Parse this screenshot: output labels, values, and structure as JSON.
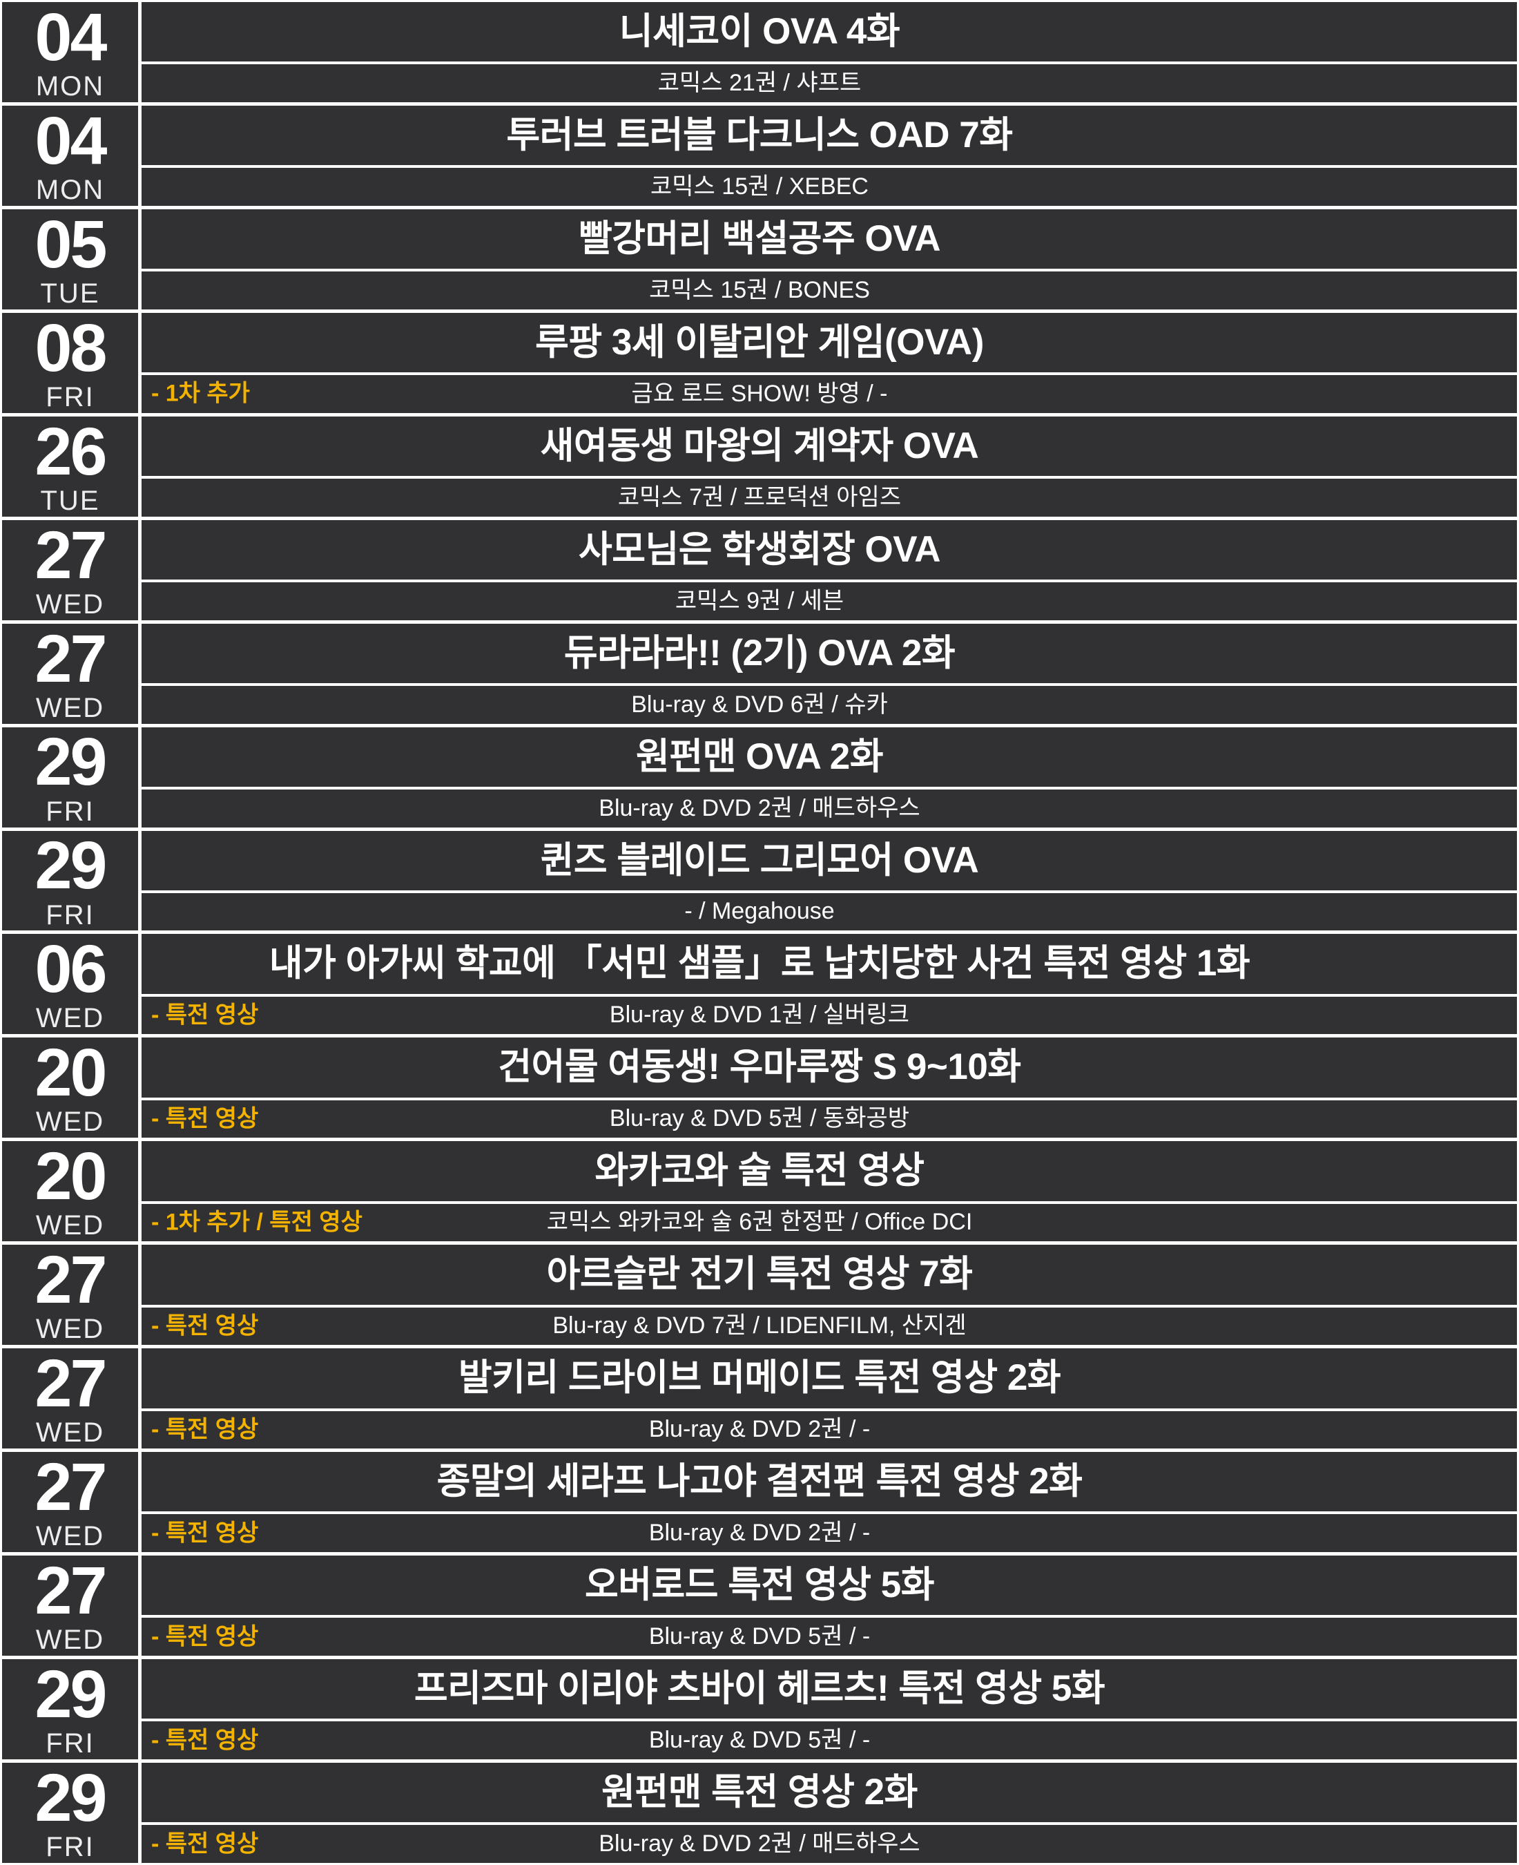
{
  "style": {
    "background_color": "#313133",
    "line_color": "#ffffff",
    "text_color": "#ffffff",
    "accent_color": "#f3b300"
  },
  "chart_data": {
    "type": "table",
    "title": "",
    "columns": [
      "date",
      "day",
      "title",
      "note",
      "subtitle"
    ],
    "rows": [
      {
        "date": "04",
        "day": "MON",
        "title": "니세코이 OVA 4화",
        "note": "",
        "subtitle": "코믹스 21권 / 샤프트"
      },
      {
        "date": "04",
        "day": "MON",
        "title": "투러브 트러블 다크니스 OAD 7화",
        "note": "",
        "subtitle": "코믹스 15권 / XEBEC"
      },
      {
        "date": "05",
        "day": "TUE",
        "title": "빨강머리 백설공주 OVA",
        "note": "",
        "subtitle": "코믹스 15권 / BONES"
      },
      {
        "date": "08",
        "day": "FRI",
        "title": "루팡 3세 이탈리안 게임(OVA)",
        "note": "- 1차 추가",
        "subtitle": "금요 로드 SHOW! 방영 / -"
      },
      {
        "date": "26",
        "day": "TUE",
        "title": "새여동생 마왕의 계약자 OVA",
        "note": "",
        "subtitle": "코믹스 7권 / 프로덕션 아임즈"
      },
      {
        "date": "27",
        "day": "WED",
        "title": "사모님은 학생회장 OVA",
        "note": "",
        "subtitle": "코믹스 9권 / 세븐"
      },
      {
        "date": "27",
        "day": "WED",
        "title": "듀라라라!! (2기) OVA 2화",
        "note": "",
        "subtitle": "Blu-ray & DVD 6권 / 슈카"
      },
      {
        "date": "29",
        "day": "FRI",
        "title": "원펀맨 OVA 2화",
        "note": "",
        "subtitle": "Blu-ray & DVD 2권 / 매드하우스"
      },
      {
        "date": "29",
        "day": "FRI",
        "title": "퀸즈 블레이드 그리모어 OVA",
        "note": "",
        "subtitle": "- / Megahouse"
      },
      {
        "date": "06",
        "day": "WED",
        "title": "내가 아가씨 학교에 「서민 샘플」로 납치당한 사건 특전 영상 1화",
        "note": "- 특전 영상",
        "subtitle": "Blu-ray & DVD 1권 / 실버링크"
      },
      {
        "date": "20",
        "day": "WED",
        "title": "건어물 여동생! 우마루짱 S 9~10화",
        "note": "- 특전 영상",
        "subtitle": "Blu-ray & DVD 5권 / 동화공방"
      },
      {
        "date": "20",
        "day": "WED",
        "title": "와카코와 술 특전 영상",
        "note": "- 1차 추가 / 특전 영상",
        "subtitle": "코믹스 와카코와 술 6권 한정판 / Office DCI"
      },
      {
        "date": "27",
        "day": "WED",
        "title": "아르슬란 전기 특전 영상 7화",
        "note": "- 특전 영상",
        "subtitle": "Blu-ray & DVD 7권 / LIDENFILM, 산지겐"
      },
      {
        "date": "27",
        "day": "WED",
        "title": "발키리 드라이브 머메이드 특전 영상 2화",
        "note": "- 특전 영상",
        "subtitle": "Blu-ray & DVD 2권 / -"
      },
      {
        "date": "27",
        "day": "WED",
        "title": "종말의 세라프 나고야 결전편 특전 영상 2화",
        "note": "- 특전 영상",
        "subtitle": "Blu-ray & DVD 2권 / -"
      },
      {
        "date": "27",
        "day": "WED",
        "title": "오버로드 특전 영상 5화",
        "note": "- 특전 영상",
        "subtitle": "Blu-ray & DVD 5권 / -"
      },
      {
        "date": "29",
        "day": "FRI",
        "title": "프리즈마 이리야 츠바이 헤르츠! 특전 영상 5화",
        "note": "- 특전 영상",
        "subtitle": "Blu-ray & DVD 5권 / -"
      },
      {
        "date": "29",
        "day": "FRI",
        "title": "원펀맨 특전 영상 2화",
        "note": "- 특전 영상",
        "subtitle": "Blu-ray & DVD 2권 / 매드하우스"
      }
    ]
  }
}
